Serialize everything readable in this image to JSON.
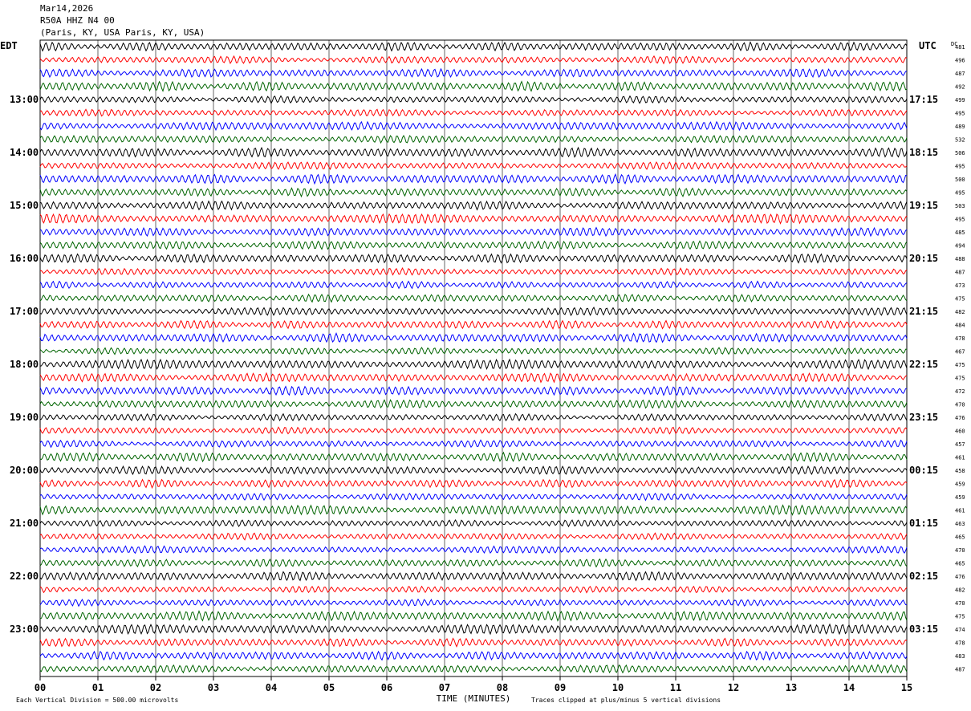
{
  "header": {
    "date": "Mar14,2026",
    "station": "R50A HHZ N4 00",
    "location": "(Paris, KY, USA Paris, KY, USA)"
  },
  "chart_data": {
    "type": "line",
    "title": "Mar14,2026",
    "subtitle": "R50A HHZ N4 00 (Paris, KY, USA Paris, KY, USA)",
    "xlabel": "TIME (MINUTES)",
    "xlim": [
      0,
      15
    ],
    "x_ticks": [
      "00",
      "01",
      "02",
      "03",
      "04",
      "05",
      "06",
      "07",
      "08",
      "09",
      "10",
      "11",
      "12",
      "13",
      "14",
      "15"
    ],
    "left_axis_label": "EDT",
    "right_axis_label": "UTC",
    "dc_label": "DC",
    "left_hour_labels": [
      "13:00",
      "14:00",
      "15:00",
      "16:00",
      "17:00",
      "18:00",
      "19:00",
      "20:00",
      "21:00",
      "22:00",
      "23:00"
    ],
    "right_hour_labels": [
      "17:15",
      "18:15",
      "19:15",
      "20:15",
      "21:15",
      "22:15",
      "23:15",
      "00:15",
      "01:15",
      "02:15",
      "03:15"
    ],
    "trace_colors": [
      "#000000",
      "#ff0000",
      "#0000ff",
      "#006400"
    ],
    "dc_offsets": [
      481,
      496,
      487,
      492,
      499,
      495,
      489,
      532,
      506,
      495,
      500,
      495,
      503,
      495,
      485,
      494,
      488,
      487,
      473,
      475,
      482,
      484,
      478,
      467,
      475,
      475,
      472,
      470,
      476,
      460,
      457,
      461,
      458,
      459,
      459,
      461,
      463,
      465,
      470,
      465,
      476,
      482,
      470,
      475,
      474,
      478,
      483,
      487
    ],
    "footer_left": "Each Vertical Division =  500.00 microvolts",
    "footer_right": "Traces clipped at plus/minus 5 vertical divisions"
  }
}
